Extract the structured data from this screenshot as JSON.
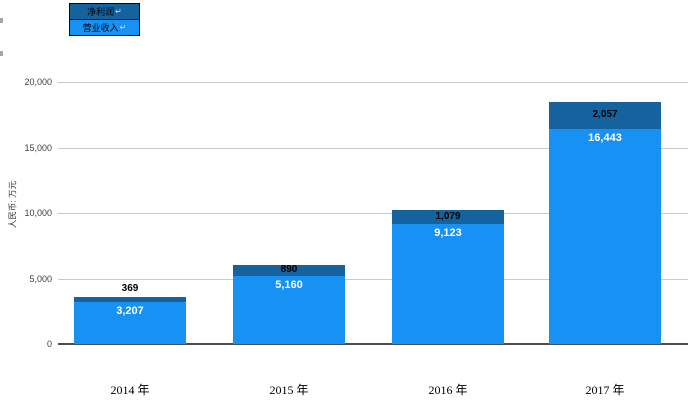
{
  "legend": {
    "items": [
      {
        "label": "净利润",
        "suffix": "↵",
        "color": "#14639f"
      },
      {
        "label": "营业收入",
        "suffix": "↵",
        "color": "#1791f4"
      }
    ]
  },
  "y_axis": {
    "label": "人民币: 万元",
    "ticks": [
      {
        "text": "20,000",
        "value": 20000
      },
      {
        "text": "15,000",
        "value": 15000
      },
      {
        "text": "10,000",
        "value": 10000
      },
      {
        "text": "5,000",
        "value": 5000
      },
      {
        "text": "0",
        "value": 0
      }
    ]
  },
  "chart_data": {
    "type": "bar",
    "stacked": true,
    "title": "",
    "xlabel": "",
    "ylabel": "人民币: 万元",
    "ylim": [
      0,
      20000
    ],
    "ytick_values": [
      0,
      5000,
      10000,
      15000,
      20000
    ],
    "grid": true,
    "legend_position": "top-left",
    "categories": [
      "2014 年",
      "2015 年",
      "2016 年",
      "2017 年"
    ],
    "series": [
      {
        "name": "营业收入",
        "values": [
          3207,
          5160,
          9123,
          16443
        ],
        "labels": [
          "3,207",
          "5,160",
          "9,123",
          "16,443"
        ],
        "color": "#1791f4",
        "label_color": "#ffffff"
      },
      {
        "name": "净利润",
        "values": [
          369,
          890,
          1079,
          2057
        ],
        "labels": [
          "369",
          "890",
          "1,079",
          "2,057"
        ],
        "color": "#14639f",
        "label_color": "#000000"
      }
    ]
  },
  "colors": {
    "gridline": "#c9c9c9",
    "axis_line": "#4d4d4d",
    "tick_text": "#3f3f3f"
  }
}
